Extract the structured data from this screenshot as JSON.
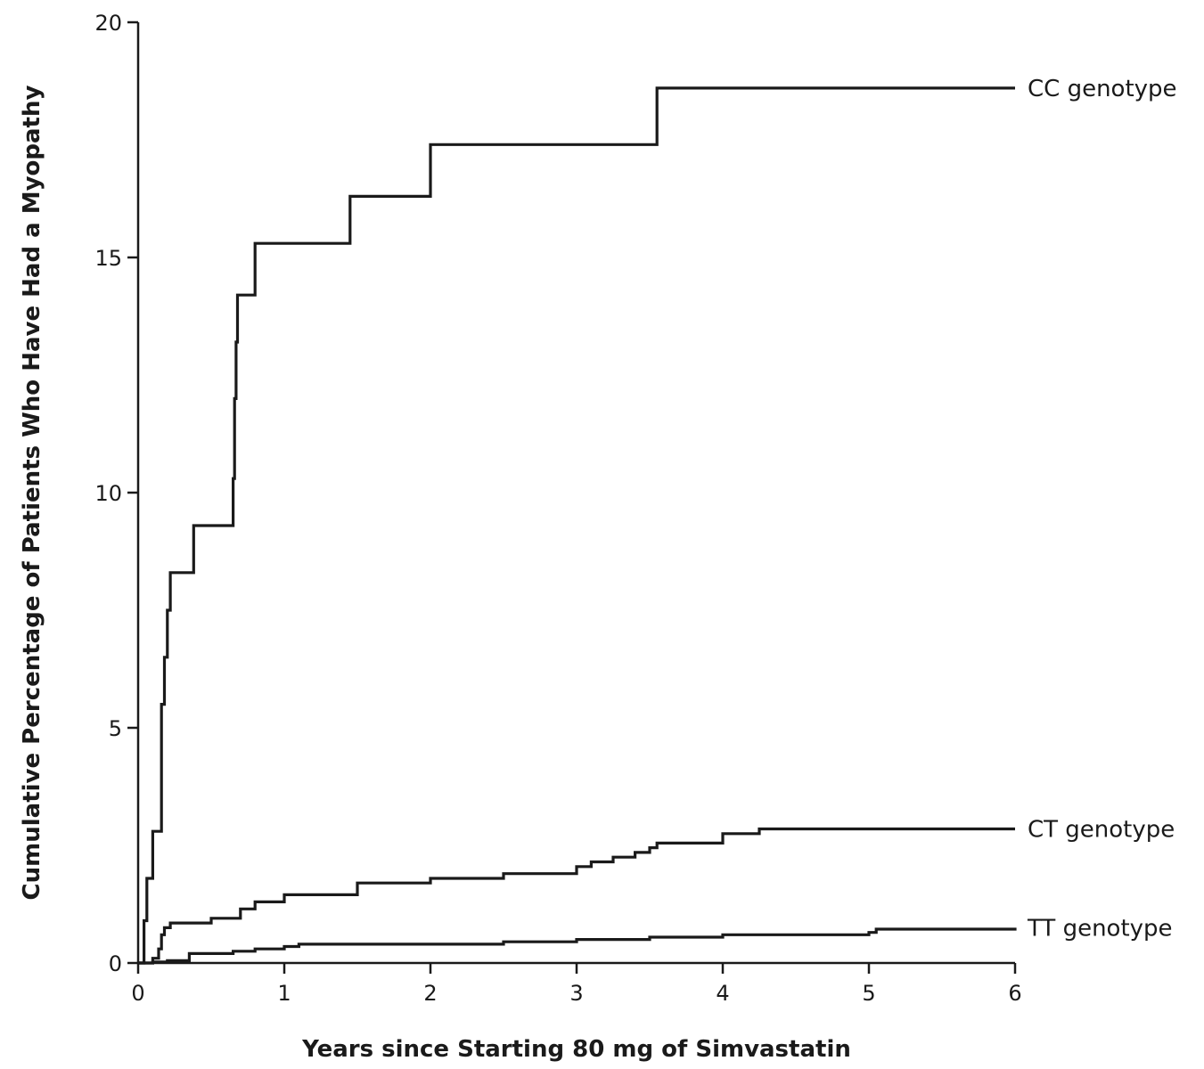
{
  "chart_data": {
    "type": "line",
    "step": true,
    "title": "",
    "xlabel": "Years since Starting 80 mg of Simvastatin",
    "ylabel": "Cumulative Percentage of Patients Who Have Had a Myopathy",
    "xlim": [
      0,
      6
    ],
    "ylim": [
      0,
      20
    ],
    "xticks": [
      0,
      1,
      2,
      3,
      4,
      5,
      6
    ],
    "yticks": [
      0,
      5,
      10,
      15,
      20
    ],
    "grid": false,
    "series": [
      {
        "name": "CC genotype",
        "x": [
          0,
          0.04,
          0.06,
          0.1,
          0.16,
          0.18,
          0.2,
          0.22,
          0.23,
          0.38,
          0.65,
          0.66,
          0.67,
          0.68,
          0.69,
          0.8,
          1.45,
          2.0,
          3.55,
          6.0
        ],
        "y": [
          0,
          0.9,
          1.8,
          2.8,
          5.5,
          6.5,
          7.5,
          8.3,
          8.3,
          9.3,
          10.3,
          12.0,
          13.2,
          14.2,
          14.2,
          15.3,
          16.3,
          17.4,
          18.6,
          18.6
        ]
      },
      {
        "name": "CT genotype",
        "x": [
          0,
          0.1,
          0.14,
          0.16,
          0.18,
          0.22,
          0.5,
          0.7,
          0.8,
          1.0,
          1.5,
          2.0,
          2.5,
          3.0,
          3.1,
          3.25,
          3.4,
          3.5,
          3.55,
          4.0,
          4.25,
          6.0
        ],
        "y": [
          0,
          0.1,
          0.3,
          0.6,
          0.75,
          0.85,
          0.95,
          1.15,
          1.3,
          1.45,
          1.7,
          1.8,
          1.9,
          2.05,
          2.15,
          2.25,
          2.35,
          2.45,
          2.55,
          2.75,
          2.85,
          2.85
        ]
      },
      {
        "name": "TT genotype",
        "x": [
          0,
          0.1,
          0.2,
          0.35,
          0.65,
          0.8,
          1.0,
          1.1,
          1.5,
          2.5,
          3.0,
          3.5,
          4.0,
          5.0,
          5.05,
          6.0
        ],
        "y": [
          0,
          0.02,
          0.05,
          0.2,
          0.25,
          0.3,
          0.35,
          0.4,
          0.4,
          0.45,
          0.5,
          0.55,
          0.6,
          0.65,
          0.72,
          0.75
        ]
      }
    ]
  }
}
